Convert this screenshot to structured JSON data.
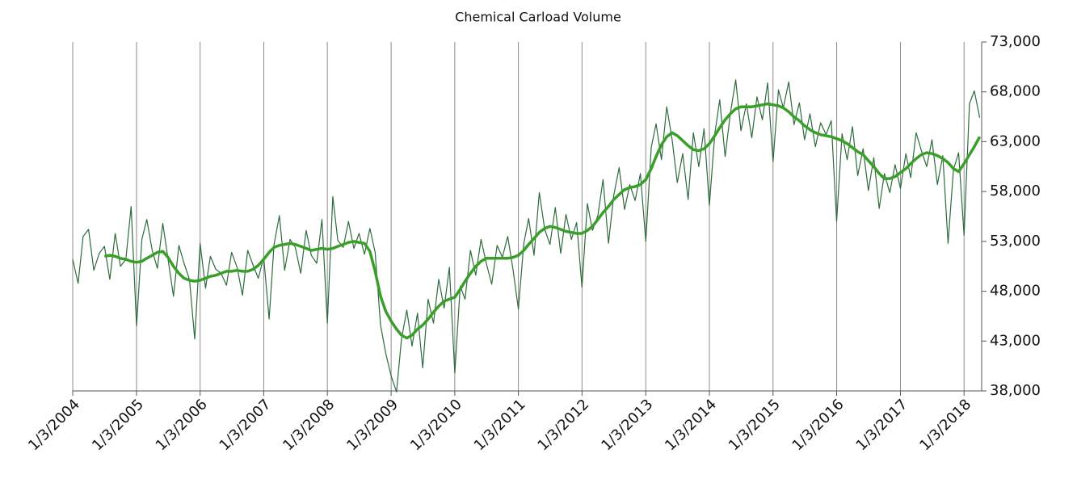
{
  "chart_data": {
    "type": "line",
    "title": "Chemical Carload Volume",
    "x": [
      "1/3/2004",
      "2/3/2004",
      "3/3/2004",
      "4/3/2004",
      "5/3/2004",
      "6/3/2004",
      "7/3/2004",
      "8/3/2004",
      "9/3/2004",
      "10/3/2004",
      "11/3/2004",
      "12/3/2004",
      "1/3/2005",
      "2/3/2005",
      "3/3/2005",
      "4/3/2005",
      "5/3/2005",
      "6/3/2005",
      "7/3/2005",
      "8/3/2005",
      "9/3/2005",
      "10/3/2005",
      "11/3/2005",
      "12/3/2005",
      "1/3/2006",
      "2/3/2006",
      "3/3/2006",
      "4/3/2006",
      "5/3/2006",
      "6/3/2006",
      "7/3/2006",
      "8/3/2006",
      "9/3/2006",
      "10/3/2006",
      "11/3/2006",
      "12/3/2006",
      "1/3/2007",
      "2/3/2007",
      "3/3/2007",
      "4/3/2007",
      "5/3/2007",
      "6/3/2007",
      "7/3/2007",
      "8/3/2007",
      "9/3/2007",
      "10/3/2007",
      "11/3/2007",
      "12/3/2007",
      "1/3/2008",
      "2/3/2008",
      "3/3/2008",
      "4/3/2008",
      "5/3/2008",
      "6/3/2008",
      "7/3/2008",
      "8/3/2008",
      "9/3/2008",
      "10/3/2008",
      "11/3/2008",
      "12/3/2008",
      "1/3/2009",
      "2/3/2009",
      "3/3/2009",
      "4/3/2009",
      "5/3/2009",
      "6/3/2009",
      "7/3/2009",
      "8/3/2009",
      "9/3/2009",
      "10/3/2009",
      "11/3/2009",
      "12/3/2009",
      "1/3/2010",
      "2/3/2010",
      "3/3/2010",
      "4/3/2010",
      "5/3/2010",
      "6/3/2010",
      "7/3/2010",
      "8/3/2010",
      "9/3/2010",
      "10/3/2010",
      "11/3/2010",
      "12/3/2010",
      "1/3/2011",
      "2/3/2011",
      "3/3/2011",
      "4/3/2011",
      "5/3/2011",
      "6/3/2011",
      "7/3/2011",
      "8/3/2011",
      "9/3/2011",
      "10/3/2011",
      "11/3/2011",
      "12/3/2011",
      "1/3/2012",
      "2/3/2012",
      "3/3/2012",
      "4/3/2012",
      "5/3/2012",
      "6/3/2012",
      "7/3/2012",
      "8/3/2012",
      "9/3/2012",
      "10/3/2012",
      "11/3/2012",
      "12/3/2012",
      "1/3/2013",
      "2/3/2013",
      "3/3/2013",
      "4/3/2013",
      "5/3/2013",
      "6/3/2013",
      "7/3/2013",
      "8/3/2013",
      "9/3/2013",
      "10/3/2013",
      "11/3/2013",
      "12/3/2013",
      "1/3/2014",
      "2/3/2014",
      "3/3/2014",
      "4/3/2014",
      "5/3/2014",
      "6/3/2014",
      "7/3/2014",
      "8/3/2014",
      "9/3/2014",
      "10/3/2014",
      "11/3/2014",
      "12/3/2014",
      "1/3/2015",
      "2/3/2015",
      "3/3/2015",
      "4/3/2015",
      "5/3/2015",
      "6/3/2015",
      "7/3/2015",
      "8/3/2015",
      "9/3/2015",
      "10/3/2015",
      "11/3/2015",
      "12/3/2015",
      "1/3/2016",
      "2/3/2016",
      "3/3/2016",
      "4/3/2016",
      "5/3/2016",
      "6/3/2016",
      "7/3/2016",
      "8/3/2016",
      "9/3/2016",
      "10/3/2016",
      "11/3/2016",
      "12/3/2016",
      "1/3/2017",
      "2/3/2017",
      "3/3/2017",
      "4/3/2017",
      "5/3/2017",
      "6/3/2017",
      "7/3/2017",
      "8/3/2017",
      "9/3/2017",
      "10/3/2017",
      "11/3/2017",
      "12/3/2017",
      "1/3/2018",
      "2/3/2018",
      "3/3/2018",
      "4/3/2018"
    ],
    "series": [
      {
        "color": "#2e6b3c",
        "width": 1.2,
        "values": [
          51200,
          48800,
          53500,
          54200,
          50100,
          51800,
          52500,
          49200,
          53800,
          50500,
          51200,
          56500,
          44500,
          53200,
          55200,
          52100,
          50300,
          54800,
          51200,
          47500,
          52600,
          50800,
          49200,
          43200,
          52800,
          48300,
          51500,
          50200,
          49800,
          48600,
          51900,
          50400,
          47600,
          52100,
          50600,
          49300,
          51400,
          45200,
          52700,
          55600,
          50100,
          53200,
          52400,
          49800,
          54100,
          51600,
          50800,
          55200,
          44800,
          57500,
          53100,
          52400,
          55000,
          52300,
          53800,
          51700,
          54300,
          51900,
          44600,
          41800,
          39500,
          37900,
          43200,
          46100,
          42500,
          45800,
          40300,
          47200,
          44800,
          49200,
          46300,
          50400,
          39800,
          48500,
          47200,
          52100,
          49600,
          53200,
          50800,
          48700,
          52600,
          51400,
          53500,
          50200,
          46200,
          52800,
          55300,
          51600,
          57900,
          54200,
          52700,
          56400,
          51800,
          55700,
          53200,
          54900,
          48400,
          56800,
          54100,
          55600,
          59200,
          52800,
          57600,
          60400,
          56200,
          58700,
          57100,
          59800,
          53000,
          62400,
          64800,
          61200,
          66500,
          63200,
          58900,
          61800,
          57200,
          63900,
          60500,
          64300,
          56600,
          63800,
          67200,
          61500,
          65800,
          69200,
          64100,
          66800,
          63400,
          67500,
          65200,
          68900,
          61000,
          68200,
          66400,
          69000,
          64700,
          66900,
          63200,
          65800,
          62500,
          64900,
          63700,
          65100,
          55000,
          63800,
          61200,
          64500,
          59600,
          62300,
          58100,
          61400,
          56300,
          59800,
          57900,
          60700,
          58300,
          61800,
          59400,
          63900,
          62100,
          60500,
          63200,
          58700,
          61600,
          52800,
          60200,
          61900,
          53600,
          66800,
          68100,
          65400
        ]
      },
      {
        "color": "#3a9e2a",
        "width": 3.5,
        "values": [
          null,
          null,
          null,
          null,
          null,
          null,
          51500,
          51600,
          51500,
          51300,
          51200,
          51000,
          50900,
          51000,
          51300,
          51600,
          51900,
          52000,
          51400,
          50500,
          49800,
          49300,
          49100,
          49000,
          49100,
          49300,
          49500,
          49600,
          49800,
          50000,
          50000,
          50100,
          50000,
          50000,
          50200,
          50600,
          51200,
          51900,
          52400,
          52600,
          52700,
          52800,
          52700,
          52500,
          52300,
          52100,
          52200,
          52300,
          52200,
          52300,
          52500,
          52700,
          52900,
          53000,
          52900,
          52800,
          52000,
          50000,
          47500,
          46000,
          45000,
          44200,
          43600,
          43300,
          43600,
          44200,
          44600,
          45200,
          45900,
          46500,
          47000,
          47200,
          47400,
          48200,
          49000,
          49800,
          50500,
          51000,
          51300,
          51300,
          51300,
          51300,
          51300,
          51400,
          51600,
          52100,
          52700,
          53300,
          53900,
          54300,
          54500,
          54400,
          54200,
          54000,
          53900,
          53800,
          53800,
          54100,
          54500,
          55200,
          55900,
          56500,
          57200,
          57700,
          58200,
          58400,
          58500,
          58700,
          59200,
          60300,
          61500,
          62700,
          63500,
          63900,
          63600,
          63100,
          62600,
          62200,
          62100,
          62300,
          62800,
          63600,
          64400,
          65200,
          65800,
          66300,
          66500,
          66500,
          66500,
          66600,
          66700,
          66800,
          66700,
          66600,
          66400,
          66000,
          65500,
          65100,
          64600,
          64200,
          63900,
          63700,
          63600,
          63500,
          63300,
          63100,
          62800,
          62400,
          62000,
          61700,
          61100,
          60500,
          59800,
          59300,
          59300,
          59500,
          59900,
          60300,
          60800,
          61300,
          61700,
          61900,
          61800,
          61600,
          61300,
          60900,
          60300,
          60000,
          60800,
          61700,
          62500,
          63500
        ]
      }
    ],
    "xlim": [
      "1/3/2004",
      "4/14/2018"
    ],
    "xticks": [
      "1/3/2004",
      "1/3/2005",
      "1/3/2006",
      "1/3/2007",
      "1/3/2008",
      "1/3/2009",
      "1/3/2010",
      "1/3/2011",
      "1/3/2012",
      "1/3/2013",
      "1/3/2014",
      "1/3/2015",
      "1/3/2016",
      "1/3/2017",
      "1/3/2018"
    ],
    "ylim": [
      38000,
      73000
    ],
    "yticks": [
      {
        "value": 38000,
        "label": "38,000"
      },
      {
        "value": 43000,
        "label": "43,000"
      },
      {
        "value": 48000,
        "label": "48,000"
      },
      {
        "value": 53000,
        "label": "53,000"
      },
      {
        "value": 58000,
        "label": "58,000"
      },
      {
        "value": 63000,
        "label": "63,000"
      },
      {
        "value": 68000,
        "label": "68,000"
      },
      {
        "value": 73000,
        "label": "73,000"
      }
    ],
    "grid": "x",
    "y_axis_side": "right"
  }
}
